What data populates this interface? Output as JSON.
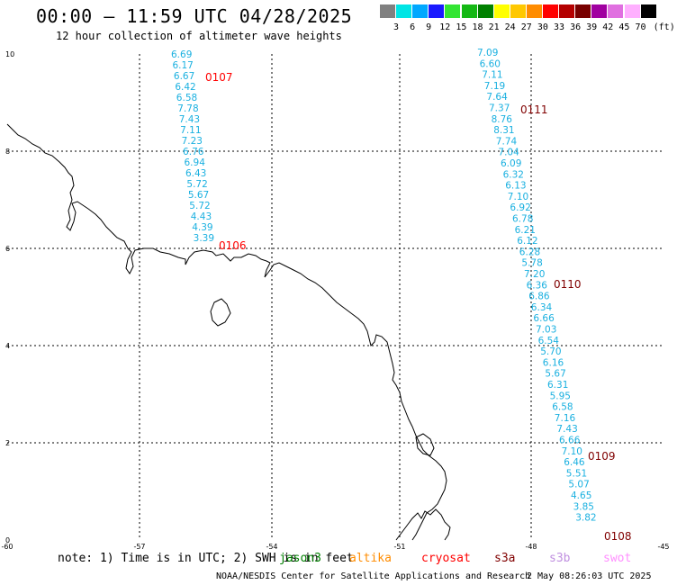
{
  "header": {
    "title": "00:00 – 11:59 UTC 04/28/2025",
    "subtitle": "12 hour collection of altimeter wave heights"
  },
  "color_scale": {
    "unit": "(ft)",
    "bins": [
      {
        "label": "3",
        "color": "#808080"
      },
      {
        "label": "6",
        "color": "#00e5e5"
      },
      {
        "label": "9",
        "color": "#00a8ff"
      },
      {
        "label": "12",
        "color": "#1a1aff"
      },
      {
        "label": "15",
        "color": "#33e533"
      },
      {
        "label": "18",
        "color": "#14b814"
      },
      {
        "label": "21",
        "color": "#008000"
      },
      {
        "label": "24",
        "color": "#ffff00"
      },
      {
        "label": "27",
        "color": "#ffc800"
      },
      {
        "label": "30",
        "color": "#ff8c00"
      },
      {
        "label": "33",
        "color": "#ff0000"
      },
      {
        "label": "36",
        "color": "#b40000"
      },
      {
        "label": "39",
        "color": "#780000"
      },
      {
        "label": "42",
        "color": "#a000a0"
      },
      {
        "label": "45",
        "color": "#e070e0"
      },
      {
        "label": "70",
        "color": "#ffb0ff"
      },
      {
        "label": "",
        "color": "#000000"
      }
    ]
  },
  "axes": {
    "x_ticks": [
      "-60",
      "-57",
      "-54",
      "-51",
      "-48",
      "-45"
    ],
    "y_ticks": [
      "0",
      "2",
      "4",
      "6",
      "8",
      "10"
    ]
  },
  "tracks": [
    {
      "label": "0107",
      "label_color": "#ff0000",
      "value_color": "#1ab0e0",
      "values": [
        "6.69",
        "6.17",
        "6.67",
        "6.42",
        "6.58",
        "7.78",
        "7.43",
        "7.11",
        "7.23",
        "6.76",
        "6.94",
        "6.43",
        "5.72",
        "5.67",
        "5.72",
        "4.43",
        "4.39",
        "3.39"
      ]
    },
    {
      "label": "0106",
      "label_color": "#ff0000",
      "value_color": "#1ab0e0",
      "values": []
    },
    {
      "label": "0111",
      "label_color": "#800000",
      "value_color": "#1ab0e0",
      "values": [
        "7.09",
        "6.60",
        "7.11",
        "7.19",
        "7.64",
        "7.37",
        "8.76",
        "8.31",
        "7.74",
        "7.04",
        "6.09",
        "6.32",
        "6.13",
        "7.10",
        "6.92",
        "6.78",
        "6.21",
        "6.12",
        "6.28",
        "5.78",
        "7.20",
        "6.36",
        "6.86",
        "6.34",
        "6.66",
        "7.03",
        "6.54",
        "5.70",
        "6.16",
        "5.67",
        "6.31",
        "5.95",
        "6.58",
        "7.16",
        "7.43",
        "6.66",
        "7.10",
        "6.46",
        "5.51",
        "5.07",
        "4.65",
        "3.85",
        "3.82"
      ]
    },
    {
      "label": "0110",
      "label_color": "#800000",
      "value_color": "#1ab0e0",
      "values": []
    },
    {
      "label": "0109",
      "label_color": "#800000",
      "value_color": "#1ab0e0",
      "values": []
    },
    {
      "label": "0108",
      "label_color": "#800000",
      "value_color": "#1ab0e0",
      "values": []
    }
  ],
  "note": "note: 1) Time is in UTC; 2) SWH is in feet",
  "missions": [
    {
      "name": "jason3",
      "color": "#008000"
    },
    {
      "name": "altika",
      "color": "#ff8c00"
    },
    {
      "name": "cryosat",
      "color": "#ff0000"
    },
    {
      "name": "s3a",
      "color": "#800000"
    },
    {
      "name": "s3b",
      "color": "#c090e0"
    },
    {
      "name": "swot",
      "color": "#ff90ff"
    }
  ],
  "credit": "NOAA/NESDIS Center for Satellite Applications and Research",
  "timestamp": "2 May 08:26:03 UTC 2025"
}
